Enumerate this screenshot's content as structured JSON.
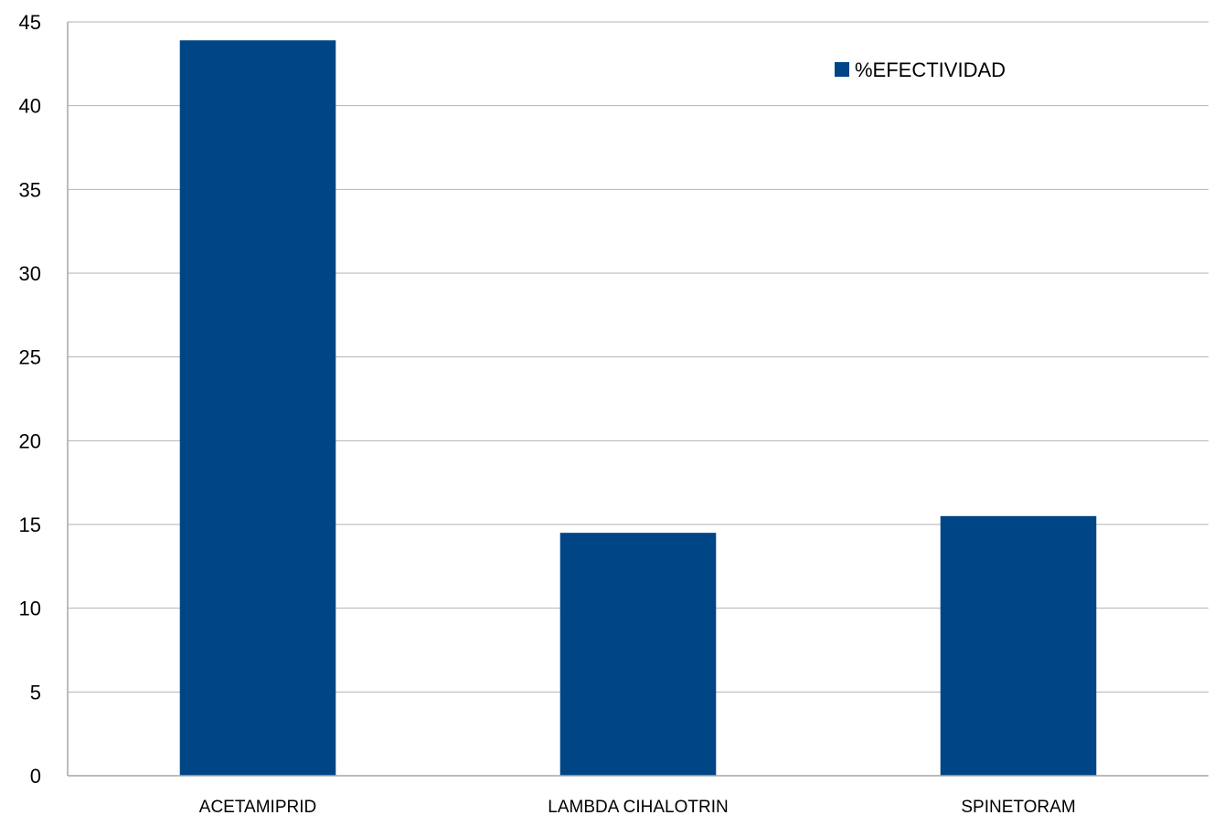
{
  "chart_data": {
    "type": "bar",
    "title": "",
    "xlabel": "",
    "ylabel": "",
    "categories": [
      "ACETAMIPRID",
      "LAMBDA CIHALOTRIN",
      "SPINETORAM"
    ],
    "series": [
      {
        "name": "%EFECTIVIDAD",
        "values": [
          43.9,
          14.5,
          15.5
        ],
        "color": "#004586"
      }
    ],
    "ylim": [
      0,
      45
    ],
    "yticks": [
      "0",
      "5",
      "10",
      "15",
      "20",
      "25",
      "30",
      "35",
      "40",
      "45"
    ],
    "grid": true,
    "legend_position": "top-right"
  }
}
